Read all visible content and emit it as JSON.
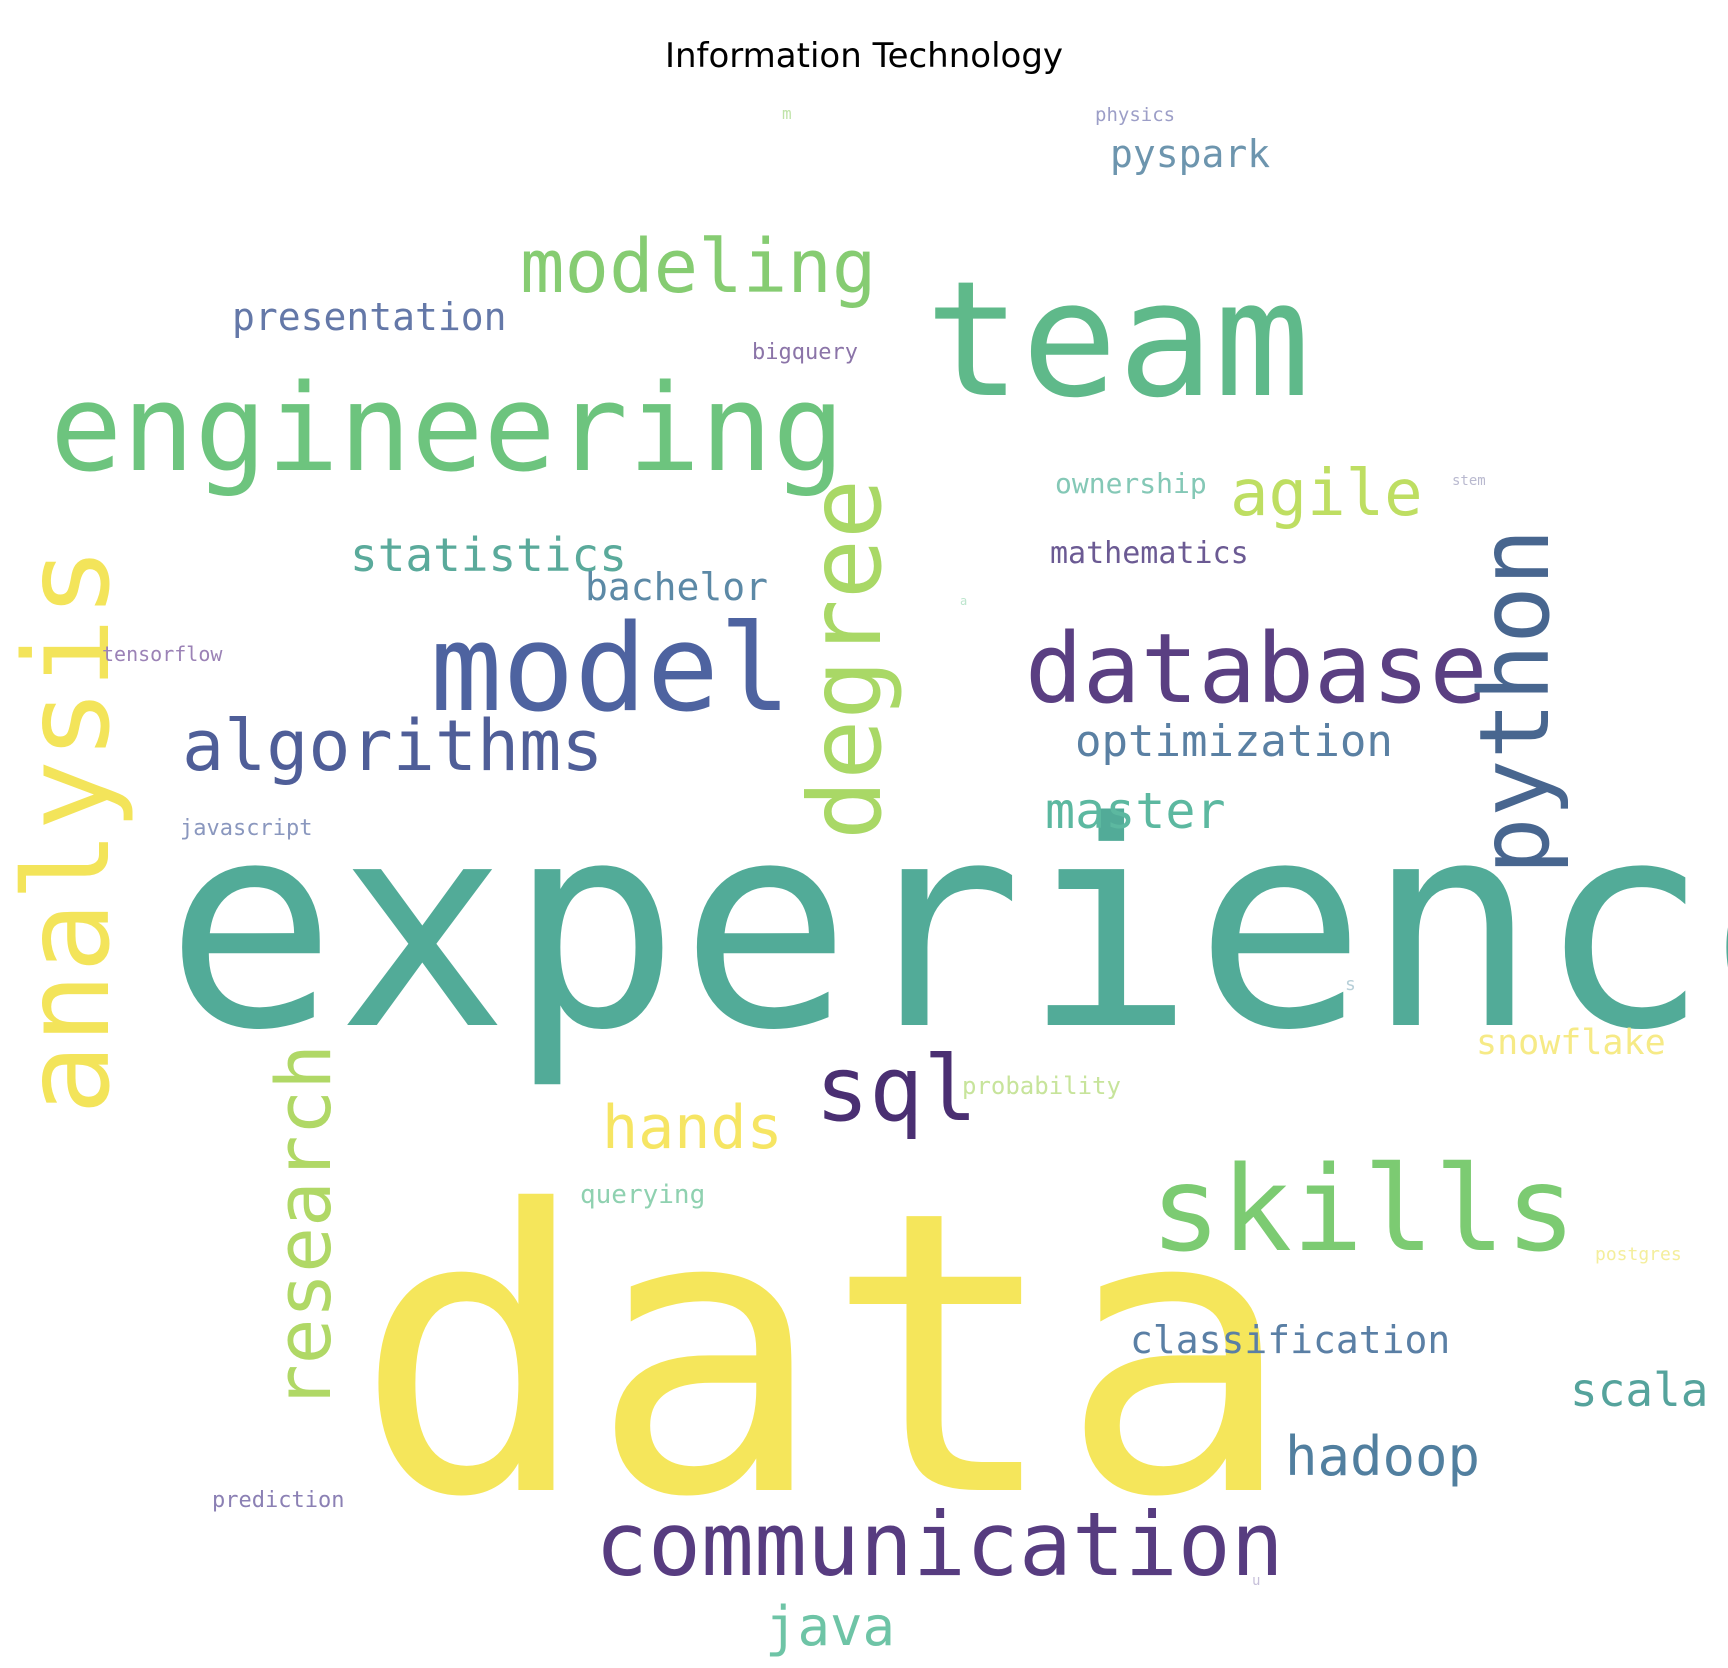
{
  "title": "Information Technology",
  "words": [
    {
      "text": "experience",
      "color": "#52ab98",
      "weight": 1.0,
      "orientation": "horizontal"
    },
    {
      "text": "data",
      "color": "#f5e65b",
      "weight": 1.0,
      "orientation": "horizontal"
    },
    {
      "text": "team",
      "color": "#5fb98a",
      "weight": 0.6,
      "orientation": "horizontal"
    },
    {
      "text": "engineering",
      "color": "#6dc47e",
      "weight": 0.45,
      "orientation": "horizontal"
    },
    {
      "text": "skills",
      "color": "#7ccb72",
      "weight": 0.45,
      "orientation": "horizontal"
    },
    {
      "text": "analysis",
      "color": "#f3e45a",
      "weight": 0.4,
      "orientation": "vertical"
    },
    {
      "text": "model",
      "color": "#4e63a0",
      "weight": 0.4,
      "orientation": "horizontal"
    },
    {
      "text": "degree",
      "color": "#a9d866",
      "weight": 0.35,
      "orientation": "vertical"
    },
    {
      "text": "database",
      "color": "#5a3f82",
      "weight": 0.35,
      "orientation": "horizontal"
    },
    {
      "text": "python",
      "color": "#48668f",
      "weight": 0.35,
      "orientation": "vertical"
    },
    {
      "text": "communication",
      "color": "#573c80",
      "weight": 0.3,
      "orientation": "horizontal"
    },
    {
      "text": "sql",
      "color": "#4a2f72",
      "weight": 0.3,
      "orientation": "horizontal"
    },
    {
      "text": "modeling",
      "color": "#86cc72",
      "weight": 0.3,
      "orientation": "horizontal"
    },
    {
      "text": "research",
      "color": "#b0d866",
      "weight": 0.28,
      "orientation": "vertical"
    },
    {
      "text": "algorithms",
      "color": "#4f5e98",
      "weight": 0.25,
      "orientation": "horizontal"
    },
    {
      "text": "agile",
      "color": "#bede62",
      "weight": 0.22,
      "orientation": "horizontal"
    },
    {
      "text": "hands",
      "color": "#f6e563",
      "weight": 0.22,
      "orientation": "horizontal"
    },
    {
      "text": "hadoop",
      "color": "#517f9f",
      "weight": 0.2,
      "orientation": "horizontal"
    },
    {
      "text": "java",
      "color": "#6ec4a6",
      "weight": 0.2,
      "orientation": "horizontal"
    },
    {
      "text": "master",
      "color": "#5cb8a0",
      "weight": 0.18,
      "orientation": "horizontal"
    },
    {
      "text": "statistics",
      "color": "#5aaa9b",
      "weight": 0.17,
      "orientation": "horizontal"
    },
    {
      "text": "scala",
      "color": "#55a39c",
      "weight": 0.17,
      "orientation": "horizontal"
    },
    {
      "text": "optimization",
      "color": "#5a80a3",
      "weight": 0.16,
      "orientation": "horizontal"
    },
    {
      "text": "classification",
      "color": "#5a7fa5",
      "weight": 0.15,
      "orientation": "horizontal"
    },
    {
      "text": "presentation",
      "color": "#6478a8",
      "weight": 0.14,
      "orientation": "horizontal"
    },
    {
      "text": "bachelor",
      "color": "#5c89a6",
      "weight": 0.14,
      "orientation": "horizontal"
    },
    {
      "text": "pyspark",
      "color": "#6d95ae",
      "weight": 0.13,
      "orientation": "horizontal"
    },
    {
      "text": "snowflake",
      "color": "#f6ea86",
      "weight": 0.13,
      "orientation": "horizontal"
    },
    {
      "text": "mathematics",
      "color": "#6b5a93",
      "weight": 0.1,
      "orientation": "horizontal"
    },
    {
      "text": "ownership",
      "color": "#84c8b6",
      "weight": 0.09,
      "orientation": "horizontal"
    },
    {
      "text": "querying",
      "color": "#8fd1b0",
      "weight": 0.08,
      "orientation": "horizontal"
    },
    {
      "text": "probability",
      "color": "#c7e49b",
      "weight": 0.08,
      "orientation": "horizontal"
    },
    {
      "text": "javascript",
      "color": "#8a97be",
      "weight": 0.07,
      "orientation": "horizontal"
    },
    {
      "text": "prediction",
      "color": "#8b80b4",
      "weight": 0.07,
      "orientation": "horizontal"
    },
    {
      "text": "bigquery",
      "color": "#8b74a8",
      "weight": 0.06,
      "orientation": "horizontal"
    },
    {
      "text": "tensorflow",
      "color": "#9b82b6",
      "weight": 0.06,
      "orientation": "horizontal"
    },
    {
      "text": "physics",
      "color": "#9c9ec7",
      "weight": 0.05,
      "orientation": "horizontal"
    },
    {
      "text": "postgres",
      "color": "#f4ee9c",
      "weight": 0.05,
      "orientation": "horizontal"
    },
    {
      "text": "stem",
      "color": "#b9b9cf",
      "weight": 0.03,
      "orientation": "horizontal"
    },
    {
      "text": "m",
      "color": "#bfe3a8",
      "weight": 0.03,
      "orientation": "horizontal"
    },
    {
      "text": "s",
      "color": "#b7cfd8",
      "weight": 0.03,
      "orientation": "horizontal"
    },
    {
      "text": "a",
      "color": "#bce5cd",
      "weight": 0.02,
      "orientation": "horizontal"
    },
    {
      "text": "u",
      "color": "#c7c0da",
      "weight": 0.02,
      "orientation": "horizontal"
    }
  ]
}
